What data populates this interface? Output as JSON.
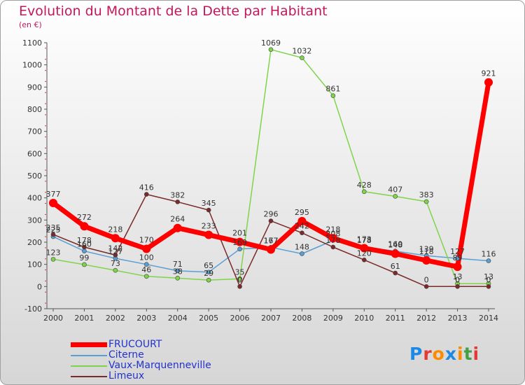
{
  "title": "Evolution du Montant de la Dette par Habitant",
  "subtitle": "(en €)",
  "logo": {
    "text": "Proxiti",
    "colors": [
      "#1e88e5",
      "#e53935",
      "#fb8c00",
      "#1e88e5",
      "#fb8c00",
      "#43a047",
      "#e53935"
    ]
  },
  "chart_data": {
    "type": "line",
    "x": [
      2000,
      2001,
      2002,
      2003,
      2004,
      2005,
      2006,
      2007,
      2008,
      2009,
      2010,
      2011,
      2012,
      2013,
      2014
    ],
    "yticks": [
      -100,
      0,
      100,
      200,
      300,
      400,
      500,
      600,
      700,
      800,
      900,
      1000,
      1100
    ],
    "ylim": [
      -100,
      1100
    ],
    "grid": false,
    "legend_position": "bottom-left",
    "series": [
      {
        "name": "FRUCOURT",
        "color": "#ff0000",
        "width": 7,
        "values": [
          377,
          272,
          218,
          170,
          264,
          233,
          201,
          167,
          295,
          218,
          173,
          148,
          118,
          89,
          921
        ],
        "labels": [
          "377",
          "272",
          "218",
          "170",
          "264",
          "233",
          "201",
          "167",
          "295",
          "218",
          "173",
          "148",
          "118",
          "89",
          "921"
        ]
      },
      {
        "name": "Citerne",
        "color": "#5a9fd4",
        "width": 1.5,
        "values": [
          225,
          160,
          127,
          100,
          71,
          65,
          169,
          177,
          148,
          208,
          178,
          160,
          139,
          127,
          116
        ],
        "labels": [
          "225",
          "160",
          "127",
          "100",
          "71",
          "65",
          "169",
          "177",
          "148",
          "208",
          "178",
          "160",
          "139",
          "127",
          "116"
        ]
      },
      {
        "name": "Vaux-Marquenneville",
        "color": "#7fd44a",
        "width": 1.5,
        "values": [
          123,
          99,
          73,
          46,
          38,
          29,
          35,
          1069,
          1032,
          861,
          428,
          407,
          383,
          13,
          13
        ],
        "labels": [
          "123",
          "99",
          "73",
          "46",
          "38",
          "29",
          "35",
          "1069",
          "1032",
          "861",
          "428",
          "407",
          "383",
          "13",
          "13"
        ]
      },
      {
        "name": "Limeux",
        "color": "#7a2a2a",
        "width": 1.5,
        "values": [
          235,
          178,
          142,
          416,
          382,
          345,
          0,
          296,
          242,
          178,
          120,
          61,
          0,
          0,
          0
        ],
        "labels": [
          "235",
          "178",
          "142",
          "416",
          "382",
          "345",
          "0",
          "296",
          "242",
          "178",
          "120",
          "61",
          "0",
          "0",
          "0"
        ]
      }
    ]
  }
}
